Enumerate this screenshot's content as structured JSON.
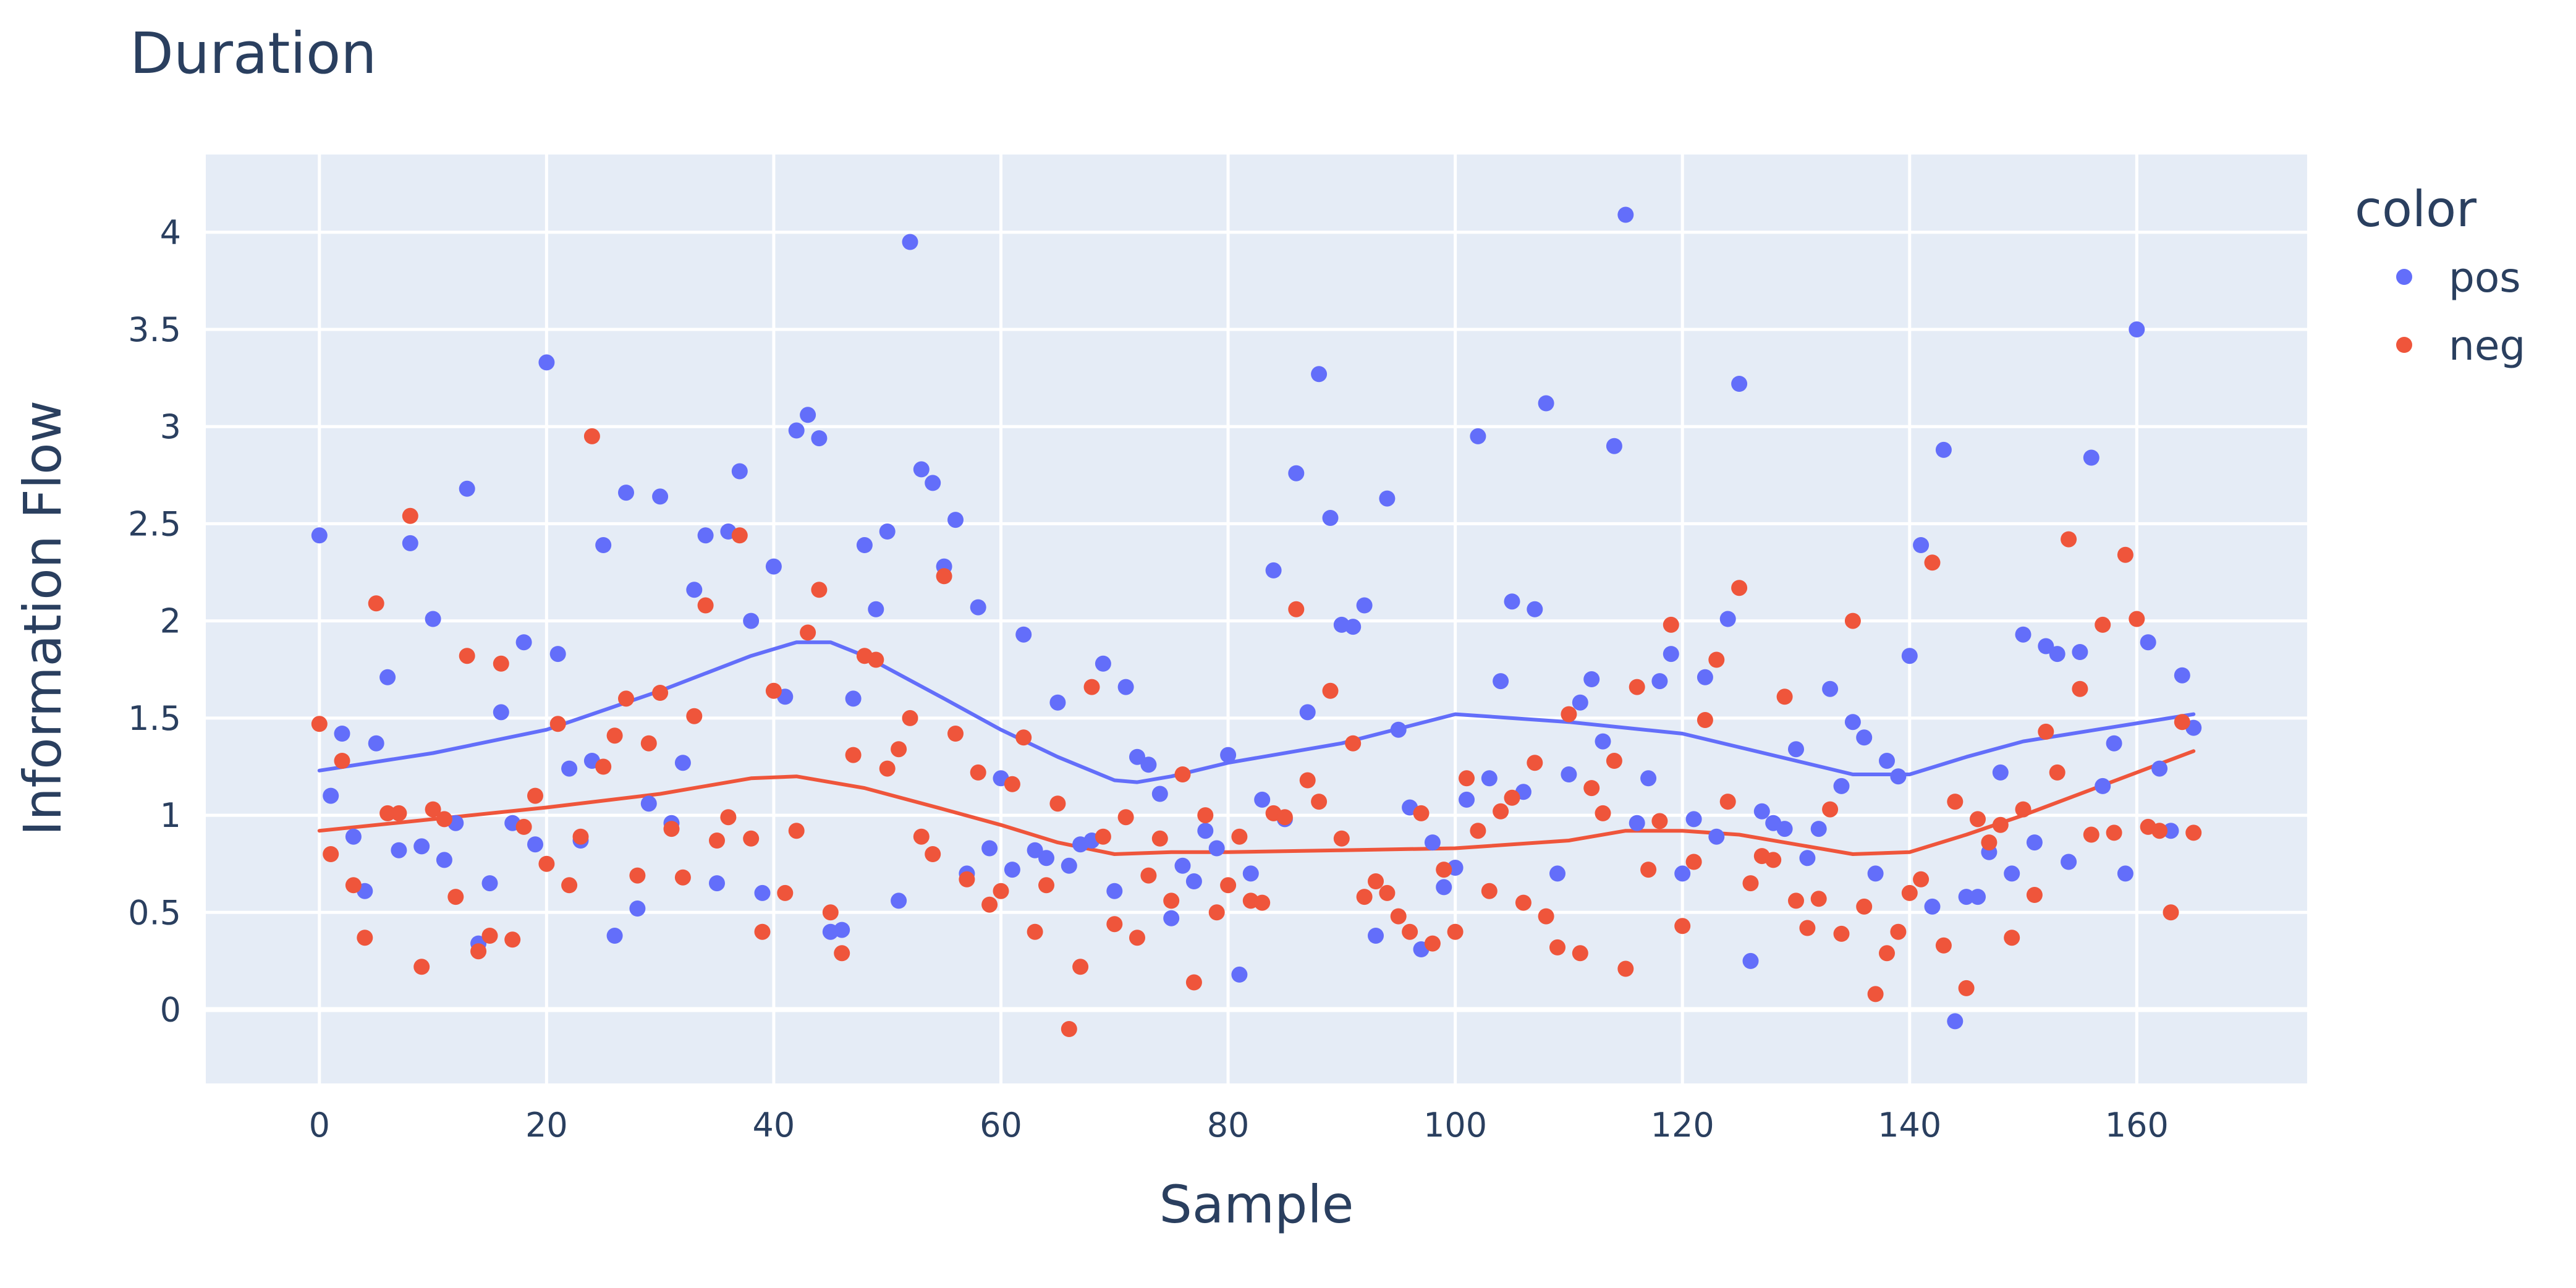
{
  "chart_data": {
    "type": "scatter",
    "title": "Duration",
    "xlabel": "Sample",
    "ylabel": "Information Flow",
    "xlim": [
      -10,
      175
    ],
    "ylim": [
      -0.38,
      4.4
    ],
    "xticks": [
      0,
      20,
      40,
      60,
      80,
      100,
      120,
      140,
      160
    ],
    "yticks": [
      0,
      0.5,
      1,
      1.5,
      2,
      2.5,
      3,
      3.5,
      4
    ],
    "ytick_labels": [
      "0",
      "0.5",
      "1",
      "1.5",
      "2",
      "2.5",
      "3",
      "3.5",
      "4"
    ],
    "grid": true,
    "legend_title": "color",
    "legend_position": "right",
    "series": [
      {
        "name": "pos",
        "color": "#636efa",
        "x": [
          0,
          1,
          2,
          3,
          4,
          5,
          6,
          7,
          8,
          9,
          10,
          11,
          12,
          13,
          14,
          15,
          16,
          17,
          18,
          19,
          20,
          21,
          22,
          23,
          24,
          25,
          26,
          27,
          28,
          29,
          30,
          31,
          32,
          33,
          34,
          35,
          36,
          37,
          38,
          39,
          40,
          41,
          42,
          43,
          44,
          45,
          46,
          47,
          48,
          49,
          50,
          51,
          52,
          53,
          54,
          55,
          56,
          57,
          58,
          59,
          60,
          61,
          62,
          63,
          64,
          65,
          66,
          67,
          68,
          69,
          70,
          71,
          72,
          73,
          74,
          75,
          76,
          77,
          78,
          79,
          80,
          81,
          82,
          83,
          84,
          85,
          86,
          87,
          88,
          89,
          90,
          91,
          92,
          93,
          94,
          95,
          96,
          97,
          98,
          99,
          100,
          101,
          102,
          103,
          104,
          105,
          106,
          107,
          108,
          109,
          110,
          111,
          112,
          113,
          114,
          115,
          116,
          117,
          118,
          119,
          120,
          121,
          122,
          123,
          124,
          125,
          126,
          127,
          128,
          129,
          130,
          131,
          132,
          133,
          134,
          135,
          136,
          137,
          138,
          139,
          140,
          141,
          142,
          143,
          144,
          145,
          146,
          147,
          148,
          149,
          150,
          151,
          152,
          153,
          154,
          155,
          156,
          157,
          158,
          159,
          160,
          161,
          162,
          163,
          164,
          165
        ],
        "y": [
          2.44,
          1.1,
          1.42,
          0.89,
          0.61,
          1.37,
          1.71,
          0.82,
          2.4,
          0.84,
          2.01,
          0.77,
          0.96,
          2.68,
          0.34,
          0.65,
          1.53,
          0.96,
          1.89,
          0.85,
          3.33,
          1.83,
          1.24,
          0.87,
          1.28,
          2.39,
          0.38,
          2.66,
          0.52,
          1.06,
          2.64,
          0.96,
          1.27,
          2.16,
          2.44,
          0.65,
          2.46,
          2.77,
          2.0,
          0.6,
          2.28,
          1.61,
          2.98,
          3.06,
          2.94,
          0.4,
          0.41,
          1.6,
          2.39,
          2.06,
          2.46,
          0.56,
          3.95,
          2.78,
          2.71,
          2.28,
          2.52,
          0.7,
          2.07,
          0.83,
          1.19,
          0.72,
          1.93,
          0.82,
          0.78,
          1.58,
          0.74,
          0.85,
          0.87,
          1.78,
          0.61,
          1.66,
          1.3,
          1.26,
          1.11,
          0.47,
          0.74,
          0.66,
          0.92,
          0.83,
          1.31,
          0.18,
          0.7,
          1.08,
          2.26,
          0.98,
          2.76,
          1.53,
          3.27,
          2.53,
          1.98,
          1.97,
          2.08,
          0.38,
          2.63,
          1.44,
          1.04,
          0.31,
          0.86,
          0.63,
          0.73,
          1.08,
          2.95,
          1.19,
          1.69,
          2.1,
          1.12,
          2.06,
          3.12,
          0.7,
          1.21,
          1.58,
          1.7,
          1.38,
          2.9,
          4.09,
          0.96,
          1.19,
          1.69,
          1.83,
          0.7,
          0.98,
          1.71,
          0.89,
          2.01,
          3.22,
          0.25,
          1.02,
          0.96,
          0.93,
          1.34,
          0.78,
          0.93,
          1.65,
          1.15,
          1.48,
          1.4,
          0.7,
          1.28,
          1.2,
          1.82,
          2.39,
          0.53,
          2.88,
          -0.06,
          0.58,
          0.58,
          0.81,
          1.22,
          0.7,
          1.93,
          0.86,
          1.87,
          1.83,
          0.76,
          1.84,
          2.84,
          1.15,
          1.37,
          0.7,
          3.5,
          1.89,
          1.24,
          0.92,
          1.72,
          1.45
        ]
      },
      {
        "name": "neg",
        "color": "#ef553b",
        "x": [
          0,
          1,
          2,
          3,
          4,
          5,
          6,
          7,
          8,
          9,
          10,
          11,
          12,
          13,
          14,
          15,
          16,
          17,
          18,
          19,
          20,
          21,
          22,
          23,
          24,
          25,
          26,
          27,
          28,
          29,
          30,
          31,
          32,
          33,
          34,
          35,
          36,
          37,
          38,
          39,
          40,
          41,
          42,
          43,
          44,
          45,
          46,
          47,
          48,
          49,
          50,
          51,
          52,
          53,
          54,
          55,
          56,
          57,
          58,
          59,
          60,
          61,
          62,
          63,
          64,
          65,
          66,
          67,
          68,
          69,
          70,
          71,
          72,
          73,
          74,
          75,
          76,
          77,
          78,
          79,
          80,
          81,
          82,
          83,
          84,
          85,
          86,
          87,
          88,
          89,
          90,
          91,
          92,
          93,
          94,
          95,
          96,
          97,
          98,
          99,
          100,
          101,
          102,
          103,
          104,
          105,
          106,
          107,
          108,
          109,
          110,
          111,
          112,
          113,
          114,
          115,
          116,
          117,
          118,
          119,
          120,
          121,
          122,
          123,
          124,
          125,
          126,
          127,
          128,
          129,
          130,
          131,
          132,
          133,
          134,
          135,
          136,
          137,
          138,
          139,
          140,
          141,
          142,
          143,
          144,
          145,
          146,
          147,
          148,
          149,
          150,
          151,
          152,
          153,
          154,
          155,
          156,
          157,
          158,
          159,
          160,
          161,
          162,
          163,
          164,
          165
        ],
        "y": [
          1.47,
          0.8,
          1.28,
          0.64,
          0.37,
          2.09,
          1.01,
          1.01,
          2.54,
          0.22,
          1.03,
          0.98,
          0.58,
          1.82,
          0.3,
          0.38,
          1.78,
          0.36,
          0.94,
          1.1,
          0.75,
          1.47,
          0.64,
          0.89,
          2.95,
          1.25,
          1.41,
          1.6,
          0.69,
          1.37,
          1.63,
          0.93,
          0.68,
          1.51,
          2.08,
          0.87,
          0.99,
          2.44,
          0.88,
          0.4,
          1.64,
          0.6,
          0.92,
          1.94,
          2.16,
          0.5,
          0.29,
          1.31,
          1.82,
          1.8,
          1.24,
          1.34,
          1.5,
          0.89,
          0.8,
          2.23,
          1.42,
          0.67,
          1.22,
          0.54,
          0.61,
          1.16,
          1.4,
          0.4,
          0.64,
          1.06,
          -0.1,
          0.22,
          1.66,
          0.89,
          0.44,
          0.99,
          0.37,
          0.69,
          0.88,
          0.56,
          1.21,
          0.14,
          1.0,
          0.5,
          0.64,
          0.89,
          0.56,
          0.55,
          1.01,
          0.99,
          2.06,
          1.18,
          1.07,
          1.64,
          0.88,
          1.37,
          0.58,
          0.66,
          0.6,
          0.48,
          0.4,
          1.01,
          0.34,
          0.72,
          0.4,
          1.19,
          0.92,
          0.61,
          1.02,
          1.09,
          0.55,
          1.27,
          0.48,
          0.32,
          1.52,
          0.29,
          1.14,
          1.01,
          1.28,
          0.21,
          1.66,
          0.72,
          0.97,
          1.98,
          0.43,
          0.76,
          1.49,
          1.8,
          1.07,
          2.17,
          0.65,
          0.79,
          0.77,
          1.61,
          0.56,
          0.42,
          0.57,
          1.03,
          0.39,
          2.0,
          0.53,
          0.08,
          0.29,
          0.4,
          0.6,
          0.67,
          2.3,
          0.33,
          1.07,
          0.11,
          0.98,
          0.86,
          0.95,
          0.37,
          1.03,
          0.59,
          1.43,
          1.22,
          2.42,
          1.65,
          0.9,
          1.98,
          0.91,
          2.34,
          2.01,
          0.94,
          0.92,
          0.5,
          1.48,
          0.91
        ]
      }
    ],
    "trendlines": [
      {
        "name": "pos",
        "color": "#636efa",
        "x": [
          0,
          10,
          20,
          24,
          30,
          38,
          42,
          45,
          48,
          55,
          60,
          65,
          70,
          72,
          75,
          80,
          90,
          100,
          110,
          120,
          135,
          140,
          145,
          150,
          165
        ],
        "y": [
          1.23,
          1.32,
          1.44,
          1.52,
          1.64,
          1.82,
          1.89,
          1.89,
          1.82,
          1.6,
          1.44,
          1.3,
          1.18,
          1.17,
          1.2,
          1.27,
          1.37,
          1.52,
          1.48,
          1.42,
          1.21,
          1.21,
          1.3,
          1.38,
          1.52
        ]
      },
      {
        "name": "neg",
        "color": "#ef553b",
        "x": [
          0,
          10,
          20,
          30,
          38,
          42,
          48,
          55,
          60,
          65,
          70,
          75,
          80,
          90,
          100,
          110,
          115,
          120,
          125,
          135,
          140,
          145,
          150,
          165
        ],
        "y": [
          0.92,
          0.98,
          1.04,
          1.11,
          1.19,
          1.2,
          1.14,
          1.03,
          0.95,
          0.86,
          0.8,
          0.81,
          0.81,
          0.82,
          0.83,
          0.87,
          0.92,
          0.92,
          0.9,
          0.8,
          0.81,
          0.9,
          1.0,
          1.33
        ]
      }
    ]
  }
}
